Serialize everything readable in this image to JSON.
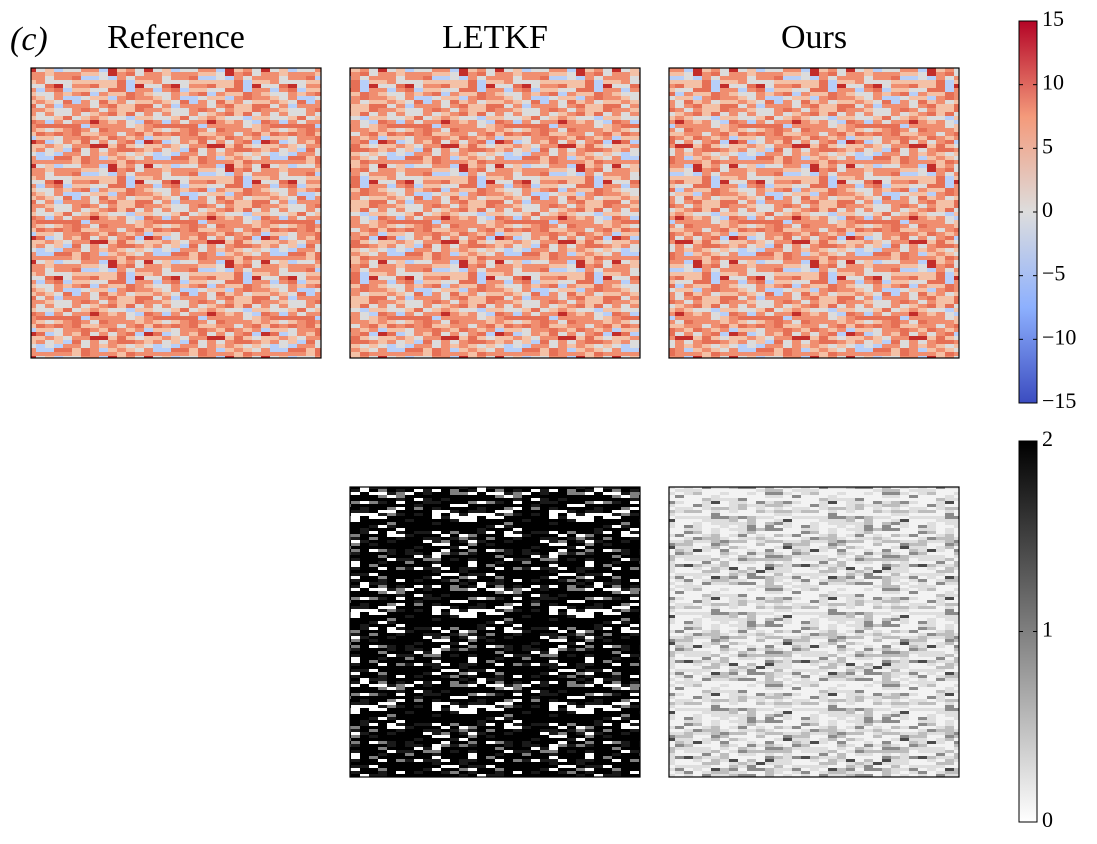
{
  "chart_data": [
    {
      "type": "heatmap",
      "label": "(c)",
      "title": "Reference",
      "cmap": "coolwarm"
    },
    {
      "type": "heatmap",
      "title": "LETKF",
      "cmap": "coolwarm"
    },
    {
      "type": "heatmap",
      "title": "Ours",
      "cmap": "coolwarm"
    },
    {
      "type": "heatmap",
      "cmap": "dark"
    },
    {
      "type": "heatmap",
      "cmap": "light"
    },
    {
      "type": "colorbar",
      "cmap": "coolwarm",
      "ylim": [
        -15,
        15
      ],
      "yticks": [
        {
          "value": -15,
          "label": "−15"
        },
        {
          "value": -10,
          "label": "−10"
        },
        {
          "value": -5,
          "label": "−5"
        },
        0,
        5,
        10,
        15
      ]
    },
    {
      "type": "colorbar",
      "cmap": "gray",
      "ylim": [
        0,
        2
      ],
      "yticks": [
        0,
        1,
        2
      ]
    }
  ]
}
